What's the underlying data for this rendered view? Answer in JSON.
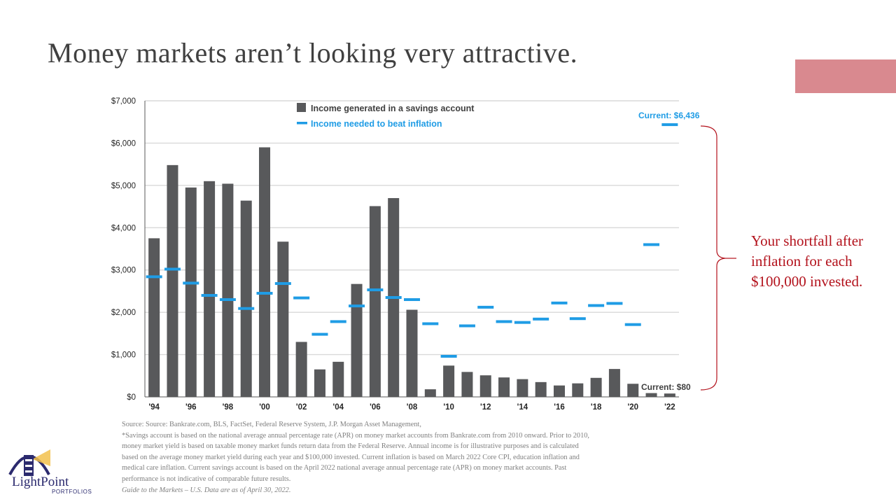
{
  "slide": {
    "title": "Money markets aren’t looking very attractive.",
    "accent_color": "#d9898f"
  },
  "callout": {
    "lines": [
      "Your shortfall after",
      "inflation for each",
      "$100,000 invested."
    ],
    "color": "#b3121c"
  },
  "chart_data": {
    "type": "bar",
    "title": "",
    "xlabel": "",
    "ylabel": "",
    "ylim": [
      0,
      7000
    ],
    "yticks": [
      0,
      1000,
      2000,
      3000,
      4000,
      5000,
      6000,
      7000
    ],
    "ytick_labels": [
      "$0",
      "$1,000",
      "$2,000",
      "$3,000",
      "$4,000",
      "$5,000",
      "$6,000",
      "$7,000"
    ],
    "grid": true,
    "legend_position": "top",
    "categories": [
      "1994",
      "1995",
      "1996",
      "1997",
      "1998",
      "1999",
      "2000",
      "2001",
      "2002",
      "2003",
      "2004",
      "2005",
      "2006",
      "2007",
      "2008",
      "2009",
      "2010",
      "2011",
      "2012",
      "2013",
      "2014",
      "2015",
      "2016",
      "2017",
      "2018",
      "2019",
      "2020",
      "2021",
      "2022"
    ],
    "x_tick_labels": [
      "'94",
      "",
      "'96",
      "",
      "'98",
      "",
      "'00",
      "",
      "'02",
      "",
      "'04",
      "",
      "'06",
      "",
      "'08",
      "",
      "'10",
      "",
      "'12",
      "",
      "'14",
      "",
      "'16",
      "",
      "'18",
      "",
      "'20",
      "",
      "'22"
    ],
    "series": [
      {
        "name": "Income generated in a savings account",
        "kind": "bar",
        "color": "#58595b",
        "values": [
          3750,
          5480,
          4950,
          5100,
          5040,
          4640,
          5900,
          3670,
          1300,
          650,
          830,
          2670,
          4510,
          4700,
          2060,
          180,
          740,
          590,
          510,
          460,
          420,
          350,
          270,
          320,
          450,
          660,
          310,
          90,
          80
        ]
      },
      {
        "name": "Income needed to beat inflation",
        "kind": "marker",
        "color": "#1f9ce5",
        "values": [
          2840,
          3020,
          2690,
          2400,
          2300,
          2090,
          2450,
          2680,
          2340,
          1480,
          1780,
          2150,
          2530,
          2350,
          2300,
          1730,
          960,
          1680,
          2120,
          1780,
          1760,
          1840,
          2220,
          1850,
          2160,
          2210,
          1710,
          3600,
          6436
        ]
      }
    ],
    "annotations": [
      "Current: $6,436",
      "Current: $80"
    ]
  },
  "footnotes": [
    "Source: Source: Bankrate.com, BLS, FactSet, Federal Reserve System, J.P. Morgan Asset Management,",
    "*Savings account is based on the national average annual percentage rate (APR) on money market accounts from Bankrate.com from 2010 onward. Prior to 2010,",
    "money market yield is based on taxable money market funds return data from the Federal Reserve. Annual income is for illustrative purposes and is calculated",
    "based on the average money market yield during each year and $100,000 invested. Current inflation is based on March 2022 Core CPI, education inflation and",
    "medical care inflation. Current savings account is based on the April 2022 national average annual percentage rate (APR) on money market accounts. Past",
    "performance is not indicative of comparable future results."
  ],
  "footnote_guide": "Guide to the Markets – U.S. Data are as of April 30, 2022.",
  "logo": {
    "text": "LightPoint",
    "subtitle": "PORTFOLIOS",
    "color": "#2b2a6e",
    "accent": "#f2c14e"
  }
}
